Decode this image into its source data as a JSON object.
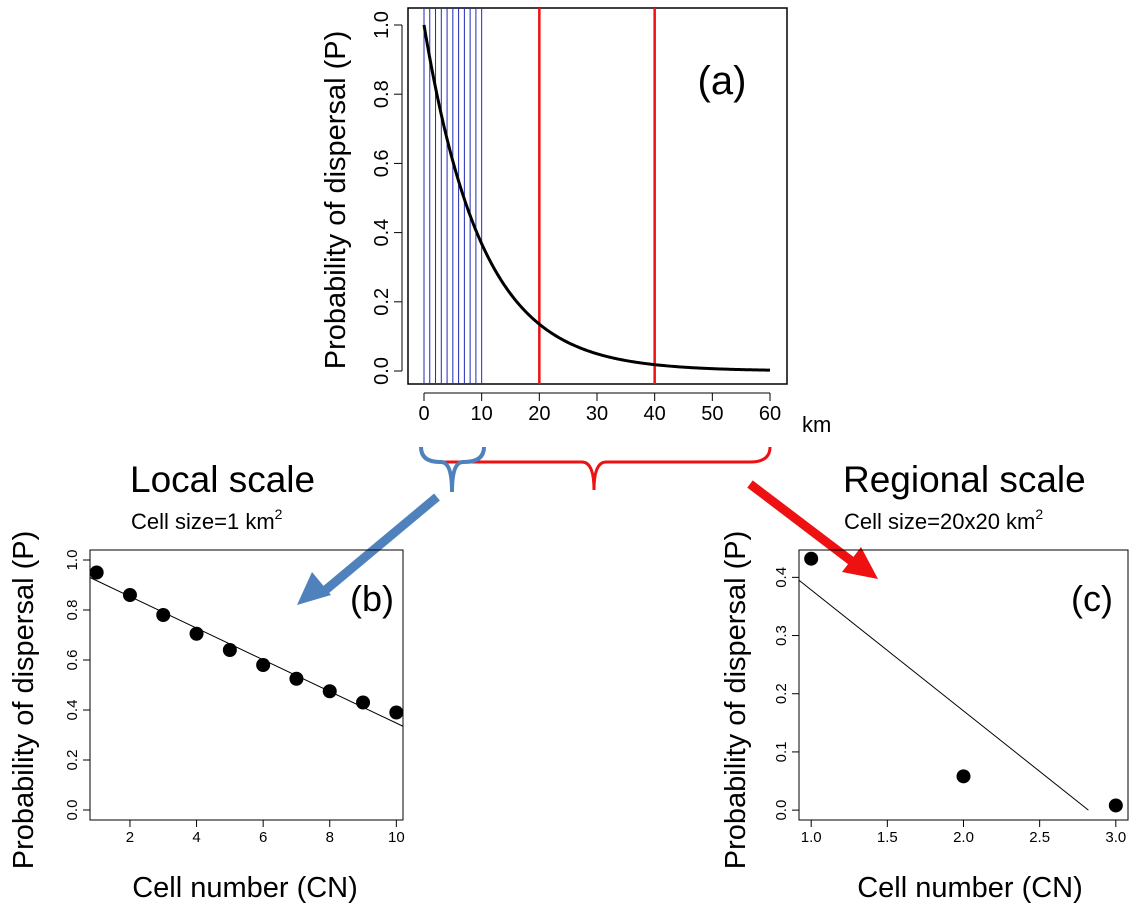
{
  "annotations": {
    "local_title": "Local scale",
    "local_cell_size": "Cell size=1 km",
    "local_cell_size_sup": "2",
    "regional_title": "Regional scale",
    "regional_cell_size": "Cell size=20x20 km",
    "regional_cell_size_sup": "2",
    "km_unit": "km",
    "colors": {
      "local": "#4f81bd",
      "regional": "#ee1111",
      "curve": "#000000",
      "local_grid": "#1f2ab5"
    }
  },
  "chart_data": [
    {
      "id": "a",
      "type": "line",
      "panel_label": "(a)",
      "ylabel": "Probability of dispersal (P)",
      "xlabel": "",
      "xlim": [
        0,
        60
      ],
      "ylim": [
        0,
        1
      ],
      "x_ticks": [
        "0",
        "10",
        "20",
        "30",
        "40",
        "50",
        "60"
      ],
      "y_ticks": [
        "0.0",
        "0.2",
        "0.4",
        "0.6",
        "0.8",
        "1.0"
      ],
      "curve": {
        "function": "exp(-x/10)",
        "x_range": [
          0,
          60
        ]
      },
      "vlines_local": [
        0,
        1,
        2,
        3,
        4,
        5,
        6,
        7,
        8,
        9,
        10
      ],
      "vlines_regional": [
        20,
        40
      ]
    },
    {
      "id": "b",
      "type": "scatter",
      "panel_label": "(b)",
      "ylabel": "Probability of dispersal (P)",
      "xlabel": "Cell number (CN)",
      "xlim": [
        0.8,
        10.2
      ],
      "ylim": [
        -0.04,
        1.04
      ],
      "x_ticks": [
        "2",
        "4",
        "6",
        "8",
        "10"
      ],
      "y_ticks": [
        "0.0",
        "0.2",
        "0.4",
        "0.6",
        "0.8",
        "1.0"
      ],
      "x": [
        1,
        2,
        3,
        4,
        5,
        6,
        7,
        8,
        9,
        10
      ],
      "y": [
        0.95,
        0.86,
        0.78,
        0.705,
        0.64,
        0.58,
        0.525,
        0.475,
        0.43,
        0.39
      ],
      "fit_line": {
        "x": [
          0.8,
          10.2
        ],
        "y": [
          0.93,
          0.335
        ]
      }
    },
    {
      "id": "c",
      "type": "scatter",
      "panel_label": "(c)",
      "ylabel": "Probability of dispersal (P)",
      "xlabel": "Cell number (CN)",
      "xlim": [
        0.92,
        3.08
      ],
      "ylim": [
        -0.017,
        0.447
      ],
      "x_ticks": [
        "1.0",
        "1.5",
        "2.0",
        "2.5",
        "3.0"
      ],
      "y_ticks": [
        "0.0",
        "0.1",
        "0.2",
        "0.3",
        "0.4"
      ],
      "x": [
        1,
        2,
        3
      ],
      "y": [
        0.432,
        0.058,
        0.008
      ],
      "fit_line": {
        "x": [
          0.92,
          2.82
        ],
        "y": [
          0.395,
          0.0
        ]
      }
    }
  ]
}
